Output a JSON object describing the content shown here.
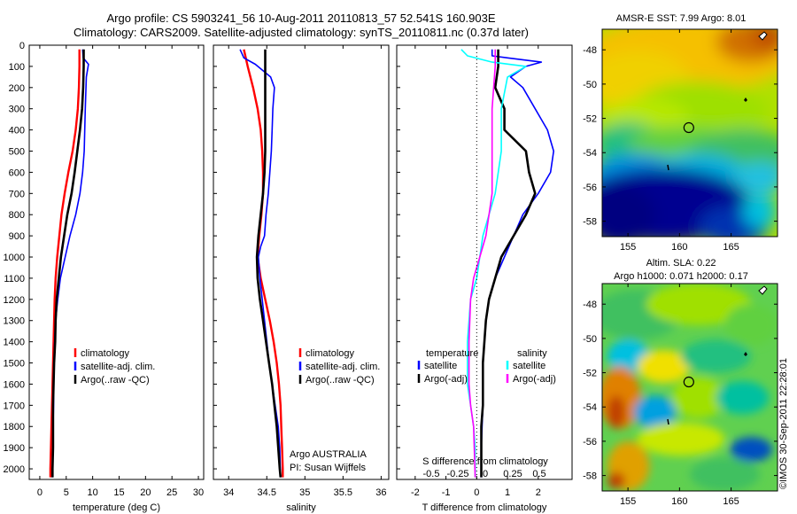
{
  "header": {
    "line1": "Argo profile: CS 5903241_56 10-Aug-2011 20110813_57 52.541S 160.903E",
    "line2": "Climatology: CARS2009. Satellite-adjusted climatology: synTS_20110811.nc (0.37d later)"
  },
  "colors": {
    "climatology": "#ff0000",
    "satellite": "#0000ff",
    "argo": "#000000",
    "sat_salinity": "#00ffff",
    "argo_salinity": "#ff00ff"
  },
  "chart_data": [
    {
      "type": "line",
      "id": "temperature",
      "xlabel": "temperature (deg C)",
      "xlim": [
        -2,
        31
      ],
      "ylim": [
        0,
        2050
      ],
      "xticks": [
        0,
        5,
        10,
        15,
        20,
        25,
        30
      ],
      "yticks": [
        0,
        100,
        200,
        300,
        400,
        500,
        600,
        700,
        800,
        900,
        1000,
        1100,
        1200,
        1300,
        1400,
        1500,
        1600,
        1700,
        1800,
        1900,
        2000
      ],
      "legend": [
        "climatology",
        "satellite-adj. clim.",
        "Argo(..raw -QC)"
      ],
      "series": [
        {
          "name": "climatology",
          "color": "#ff0000",
          "x": [
            7.5,
            7.5,
            7.4,
            7.2,
            6.8,
            6.2,
            5.4,
            4.7,
            4.1,
            3.7,
            3.3,
            3.0,
            2.8,
            2.7,
            2.6,
            2.5,
            2.4,
            2.3,
            2.2,
            2.1,
            2.0,
            2.0
          ],
          "y": [
            20,
            100,
            200,
            300,
            400,
            500,
            600,
            700,
            800,
            900,
            1000,
            1100,
            1200,
            1300,
            1400,
            1500,
            1600,
            1700,
            1800,
            1900,
            2000,
            2040
          ]
        },
        {
          "name": "satellite-adj. clim.",
          "color": "#0000ff",
          "x": [
            8.1,
            8.2,
            9.2,
            8.8,
            8.6,
            8.5,
            8.4,
            8.1,
            7.6,
            6.8,
            5.7,
            4.8,
            3.9,
            3.4,
            3.0,
            2.8,
            2.7,
            2.6,
            2.6,
            2.5,
            2.5,
            2.4,
            2.4
          ],
          "y": [
            20,
            60,
            90,
            150,
            300,
            400,
            500,
            600,
            700,
            800,
            900,
            1000,
            1100,
            1200,
            1300,
            1400,
            1500,
            1600,
            1700,
            1800,
            1900,
            2000,
            2040
          ]
        },
        {
          "name": "Argo(..raw -QC)",
          "color": "#000000",
          "x": [
            8.3,
            8.3,
            8.2,
            8.0,
            7.6,
            7.1,
            6.6,
            6.0,
            5.2,
            4.6,
            4.0,
            3.6,
            3.2,
            3.0,
            2.9,
            2.7,
            2.6,
            2.5,
            2.5,
            2.5,
            2.4,
            2.4
          ],
          "y": [
            20,
            100,
            200,
            300,
            400,
            500,
            600,
            700,
            800,
            900,
            1000,
            1100,
            1200,
            1300,
            1400,
            1500,
            1600,
            1700,
            1800,
            1900,
            2000,
            2040
          ]
        }
      ]
    },
    {
      "type": "line",
      "id": "salinity",
      "xlabel": "salinity",
      "xlim": [
        33.8,
        36.1
      ],
      "ylim": [
        0,
        2050
      ],
      "xticks": [
        34,
        34.5,
        35,
        35.5,
        36
      ],
      "legend": [
        "climatology",
        "satellite-adj. clim.",
        "Argo(..raw -QC)"
      ],
      "series": [
        {
          "name": "climatology",
          "color": "#ff0000",
          "x": [
            34.2,
            34.25,
            34.32,
            34.38,
            34.42,
            34.44,
            34.45,
            34.45,
            34.43,
            34.4,
            34.38,
            34.42,
            34.48,
            34.54,
            34.59,
            34.63,
            34.66,
            34.68,
            34.69,
            34.7,
            34.71,
            34.71
          ],
          "y": [
            20,
            100,
            200,
            300,
            400,
            500,
            600,
            700,
            800,
            900,
            1000,
            1100,
            1200,
            1300,
            1400,
            1500,
            1600,
            1700,
            1800,
            1900,
            2000,
            2040
          ]
        },
        {
          "name": "satellite-adj. clim.",
          "color": "#0000ff",
          "x": [
            34.15,
            34.2,
            34.35,
            34.55,
            34.6,
            34.58,
            34.57,
            34.56,
            34.54,
            34.52,
            34.49,
            34.47,
            34.42,
            34.39,
            34.41,
            34.44,
            34.47,
            34.5,
            34.53,
            34.57,
            34.61,
            34.65,
            34.67,
            34.68
          ],
          "y": [
            20,
            60,
            90,
            150,
            200,
            300,
            400,
            500,
            600,
            700,
            800,
            900,
            950,
            1000,
            1100,
            1200,
            1300,
            1400,
            1500,
            1600,
            1700,
            1800,
            1900,
            2040
          ]
        },
        {
          "name": "Argo(..raw -QC)",
          "color": "#000000",
          "x": [
            34.48,
            34.48,
            34.48,
            34.48,
            34.48,
            34.48,
            34.47,
            34.45,
            34.42,
            34.39,
            34.37,
            34.38,
            34.41,
            34.45,
            34.49,
            34.53,
            34.57,
            34.6,
            34.63,
            34.65,
            34.67,
            34.68
          ],
          "y": [
            20,
            100,
            200,
            300,
            400,
            500,
            600,
            700,
            800,
            900,
            1000,
            1100,
            1200,
            1300,
            1400,
            1500,
            1600,
            1700,
            1800,
            1900,
            2000,
            2040
          ]
        }
      ],
      "annotations": [
        "Argo AUSTRALIA",
        "PI: Susan Wijffels"
      ]
    },
    {
      "type": "line",
      "id": "differences",
      "xlabel": "T difference from climatology",
      "xlabel2": "S difference from climatology",
      "xlim": [
        -2.6,
        3.1
      ],
      "ylim": [
        0,
        2050
      ],
      "xticks": [
        -2,
        -1,
        0,
        1,
        2
      ],
      "xticks_s": [
        "-0.5",
        "-0.25",
        "0",
        "0.25",
        "0.5"
      ],
      "legend_groups": [
        "temperature",
        "salinity"
      ],
      "legend": [
        "satellite",
        "Argo(-adj)",
        "satellite",
        "Argo(-adj)"
      ],
      "series": [
        {
          "name": "satellite",
          "color": "#0000ff",
          "x": [
            0.5,
            0.5,
            1.0,
            2.1,
            1.6,
            1.1,
            1.5,
            1.9,
            2.3,
            2.5,
            2.4,
            2.0,
            1.5,
            1.2,
            0.9,
            0.6,
            0.4,
            0.3,
            0.25,
            0.2,
            0.2,
            0.2,
            0.15,
            0.15
          ],
          "y": [
            20,
            50,
            60,
            80,
            100,
            150,
            200,
            300,
            400,
            500,
            600,
            700,
            800,
            900,
            1000,
            1100,
            1200,
            1300,
            1400,
            1500,
            1600,
            1700,
            1900,
            2040
          ]
        },
        {
          "name": "Argo(-adj)",
          "color": "#000000",
          "x": [
            0.7,
            0.7,
            0.6,
            0.9,
            0.9,
            1.6,
            1.7,
            1.9,
            1.6,
            1.2,
            0.8,
            0.6,
            0.4,
            0.3,
            0.25,
            0.2,
            0.2,
            0.2,
            0.15,
            0.15,
            0.15
          ],
          "y": [
            20,
            100,
            200,
            300,
            400,
            500,
            600,
            700,
            800,
            900,
            1000,
            1100,
            1200,
            1300,
            1400,
            1500,
            1600,
            1700,
            1800,
            1900,
            2040
          ]
        },
        {
          "name": "satellite",
          "color": "#00ffff",
          "x": [
            -0.5,
            -0.3,
            0.5,
            1.6,
            1.0,
            0.8,
            0.8,
            0.6,
            0.4,
            0.2,
            0.1,
            0.0,
            -0.2,
            -0.3,
            -0.3,
            -0.2,
            -0.1,
            -0.05,
            -0.05
          ],
          "y": [
            20,
            50,
            80,
            100,
            150,
            300,
            500,
            700,
            800,
            900,
            1000,
            1100,
            1200,
            1400,
            1600,
            1700,
            1800,
            1900,
            2040
          ]
        },
        {
          "name": "Argo(-adj)",
          "color": "#ff00ff",
          "x": [
            0.6,
            0.6,
            0.5,
            0.5,
            0.5,
            0.4,
            0.3,
            0.1,
            -0.1,
            -0.2,
            -0.25,
            -0.25,
            -0.2,
            -0.1,
            -0.05
          ],
          "y": [
            20,
            100,
            300,
            500,
            700,
            800,
            900,
            1000,
            1100,
            1200,
            1400,
            1600,
            1700,
            1800,
            2040
          ]
        }
      ]
    },
    {
      "type": "heatmap",
      "id": "sst-map",
      "title": "AMSR-E SST: 7.99 Argo: 8.01",
      "xticks": [
        155,
        160,
        165
      ],
      "yticks": [
        -48,
        -50,
        -52,
        -54,
        -56,
        -58
      ],
      "xlim": [
        152.5,
        169.5
      ],
      "ylim": [
        -58.9,
        -46.8
      ],
      "argo_position": [
        160.9,
        -52.54
      ]
    },
    {
      "type": "heatmap",
      "id": "sla-map",
      "title": "Altim. SLA: 0.22",
      "subtitle": "Argo h1000: 0.071 h2000: 0.17",
      "xticks": [
        155,
        160,
        165
      ],
      "yticks": [
        -48,
        -50,
        -52,
        -54,
        -56,
        -58
      ],
      "xlim": [
        152.5,
        169.5
      ],
      "ylim": [
        -58.9,
        -46.8
      ],
      "argo_position": [
        160.9,
        -52.54
      ]
    }
  ],
  "footer": {
    "credit": "©IMOS 30-Sep-2011 22:28:01"
  }
}
